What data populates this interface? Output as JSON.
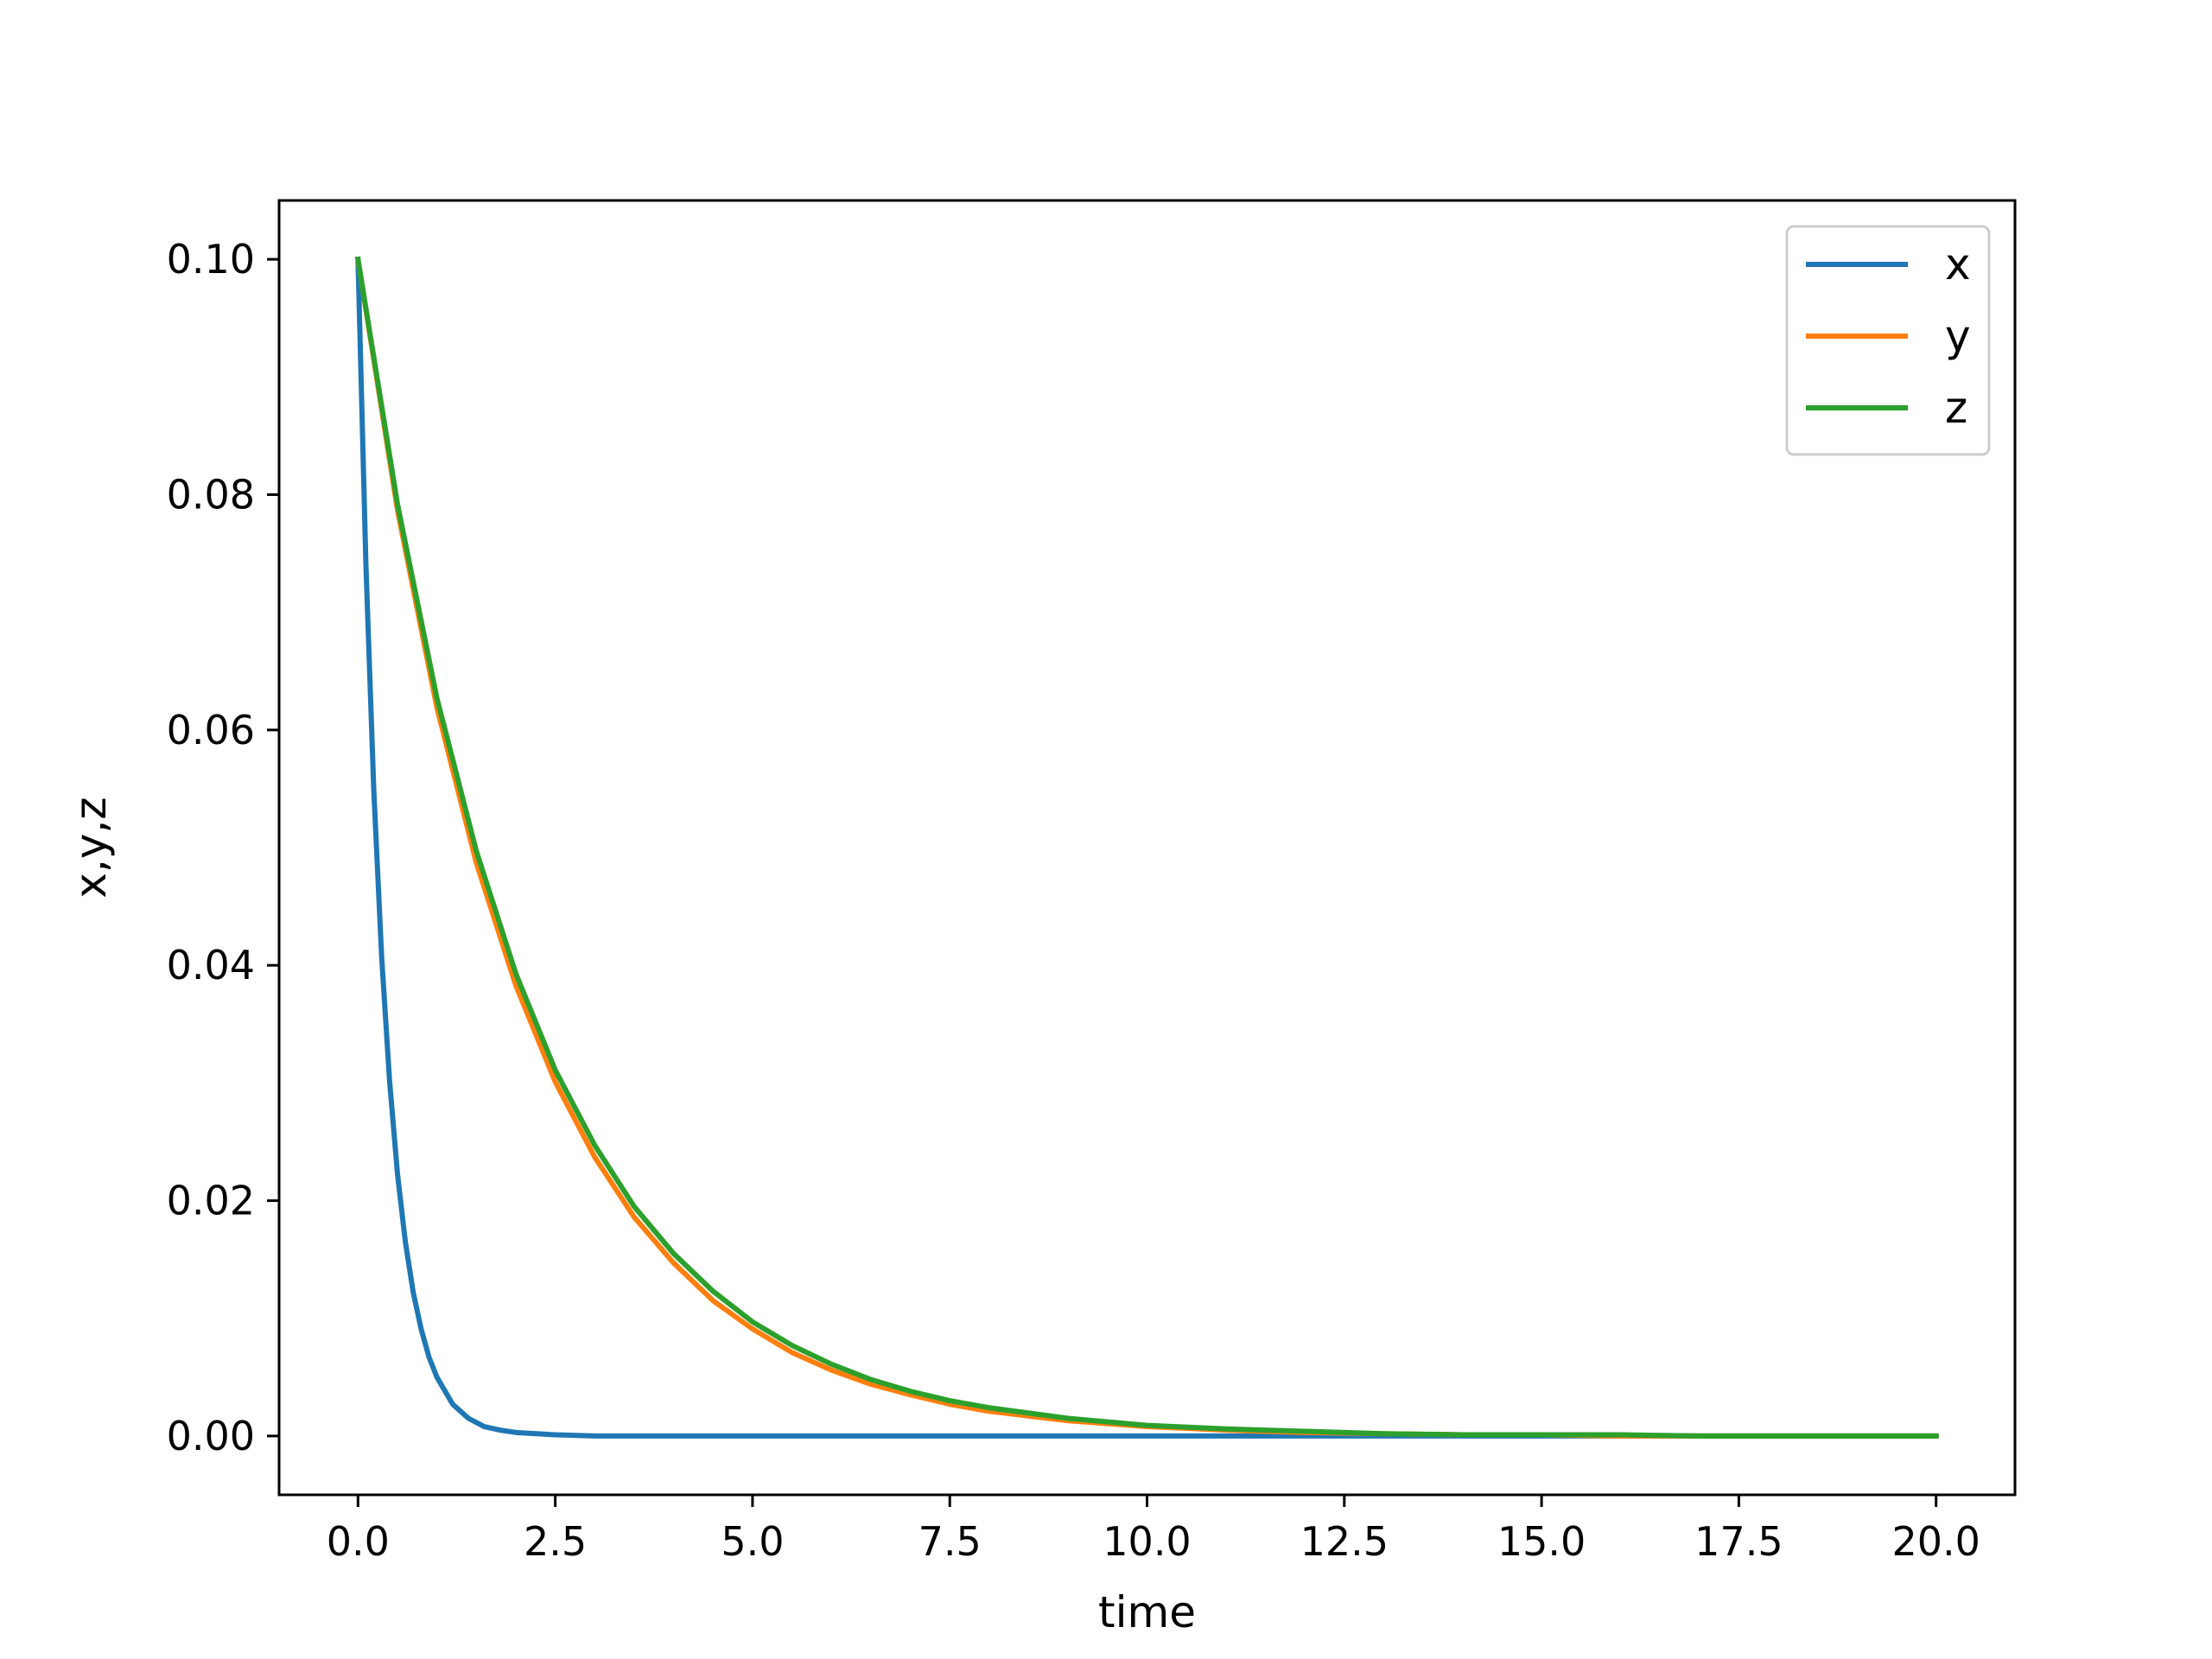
{
  "chart_data": {
    "type": "line",
    "xlabel": "time",
    "ylabel": "x,y,z",
    "xlim": [
      -1.0,
      21.0
    ],
    "ylim": [
      -0.005,
      0.105
    ],
    "x_ticks": [
      "0.0",
      "2.5",
      "5.0",
      "7.5",
      "10.0",
      "12.5",
      "15.0",
      "17.5",
      "20.0"
    ],
    "y_ticks": [
      "0.00",
      "0.02",
      "0.04",
      "0.06",
      "0.08",
      "0.10"
    ],
    "x_tick_values": [
      0,
      2.5,
      5,
      7.5,
      10,
      12.5,
      15,
      17.5,
      20
    ],
    "y_tick_values": [
      0,
      0.02,
      0.04,
      0.06,
      0.08,
      0.1
    ],
    "legend_position": "upper right",
    "grid": false,
    "series": [
      {
        "name": "x",
        "color": "#1f77b4",
        "x": [
          0,
          0.1,
          0.2,
          0.3,
          0.4,
          0.5,
          0.6,
          0.7,
          0.8,
          0.9,
          1.0,
          1.2,
          1.4,
          1.6,
          1.8,
          2.0,
          2.5,
          3.0,
          5.0,
          7.5,
          10.0,
          12.5,
          15.0,
          17.5,
          20.0
        ],
        "values": [
          0.1,
          0.0741,
          0.0549,
          0.0407,
          0.0302,
          0.0223,
          0.0165,
          0.0122,
          0.0091,
          0.0067,
          0.005,
          0.0027,
          0.0015,
          0.0008,
          0.0005,
          0.0003,
          0.0001,
          0.0,
          0.0,
          0.0,
          0.0,
          0.0,
          0.0,
          0.0,
          0.0
        ]
      },
      {
        "name": "y",
        "color": "#ff7f0e",
        "x": [
          0,
          0.5,
          1.0,
          1.5,
          2.0,
          2.5,
          3.0,
          3.5,
          4.0,
          4.5,
          5.0,
          5.5,
          6.0,
          6.5,
          7.0,
          7.5,
          8.0,
          9.0,
          10.0,
          11.0,
          12.0,
          13.0,
          14.0,
          15.0,
          16.0,
          17.0,
          18.0,
          19.0,
          20.0
        ],
        "values": [
          0.1,
          0.0787,
          0.0619,
          0.0487,
          0.0383,
          0.0301,
          0.0237,
          0.0186,
          0.0147,
          0.0115,
          0.0091,
          0.0071,
          0.0056,
          0.0044,
          0.0035,
          0.0027,
          0.0021,
          0.0013,
          0.0008,
          0.0005,
          0.0003,
          0.0002,
          0.0001,
          0.0001,
          0.0,
          0.0,
          0.0,
          0.0,
          0.0
        ]
      },
      {
        "name": "z",
        "color": "#2ca02c",
        "x": [
          0,
          0.5,
          1.0,
          1.5,
          2.0,
          2.5,
          3.0,
          3.5,
          4.0,
          4.5,
          5.0,
          5.5,
          6.0,
          6.5,
          7.0,
          7.5,
          8.0,
          9.0,
          10.0,
          11.0,
          12.0,
          13.0,
          14.0,
          15.0,
          16.0,
          17.0,
          18.0,
          19.0,
          20.0
        ],
        "values": [
          0.1,
          0.0792,
          0.0627,
          0.0497,
          0.0393,
          0.0311,
          0.0247,
          0.0195,
          0.0155,
          0.0123,
          0.0097,
          0.0077,
          0.0061,
          0.0048,
          0.0038,
          0.003,
          0.0024,
          0.0015,
          0.0009,
          0.0006,
          0.0004,
          0.0002,
          0.0001,
          0.0001,
          0.0001,
          0.0,
          0.0,
          0.0,
          0.0
        ]
      }
    ]
  }
}
